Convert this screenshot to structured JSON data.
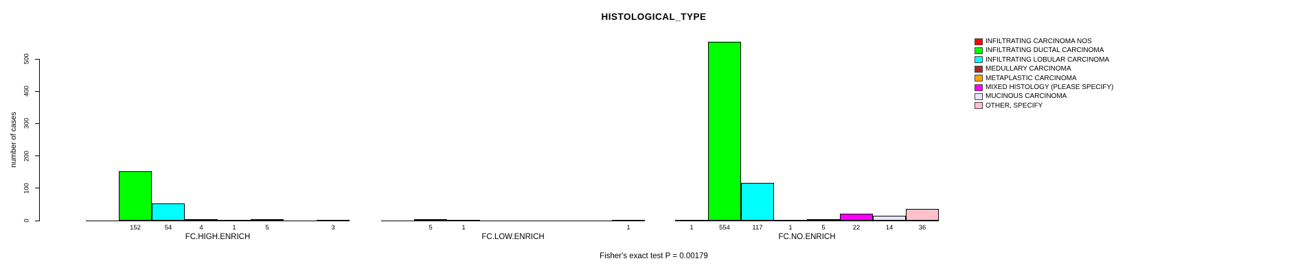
{
  "chart": {
    "title": "HISTOLOGICAL_TYPE",
    "ylabel": "number of cases",
    "caption": "Fisher's exact test P = 0.00179"
  },
  "chart_data": {
    "type": "bar",
    "title": "HISTOLOGICAL_TYPE",
    "xlabel": "",
    "ylabel": "number of cases",
    "ylim": [
      0,
      500
    ],
    "yticks": [
      0,
      100,
      200,
      300,
      400,
      500
    ],
    "grid": false,
    "legend_position": "right",
    "annotation": "Fisher's exact test P = 0.00179",
    "categories": [
      "INFILTRATING CARCINOMA NOS",
      "INFILTRATING DUCTAL CARCINOMA",
      "INFILTRATING LOBULAR CARCINOMA",
      "MEDULLARY CARCINOMA",
      "METAPLASTIC CARCINOMA",
      "MIXED HISTOLOGY (PLEASE SPECIFY)",
      "MUCINOUS CARCINOMA",
      "OTHER, SPECIFY"
    ],
    "colors": [
      "#FF0000",
      "#00FF00",
      "#00FFFF",
      "#A52A2A",
      "#FFA500",
      "#FF00FF",
      "#E6E6FA",
      "#FFC0CB"
    ],
    "groups": [
      {
        "label": "FC.HIGH.ENRICH",
        "values": [
          0,
          152,
          54,
          4,
          1,
          5,
          0,
          3
        ]
      },
      {
        "label": "FC.LOW.ENRICH",
        "values": [
          0,
          5,
          1,
          0,
          0,
          0,
          0,
          1
        ]
      },
      {
        "label": "FC.NO.ENRICH",
        "values": [
          1,
          554,
          117,
          1,
          5,
          22,
          14,
          36
        ]
      }
    ],
    "bar_value_labels_shown_when": "value > 0"
  }
}
